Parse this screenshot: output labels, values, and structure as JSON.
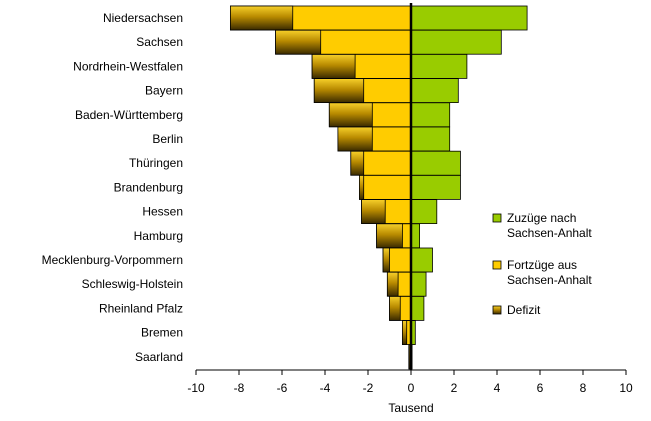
{
  "chart_data": {
    "type": "bar",
    "orientation": "horizontal",
    "categories": [
      "Niedersachsen",
      "Sachsen",
      "Nordrhein-Westfalen",
      "Bayern",
      "Baden-Württemberg",
      "Berlin",
      "Thüringen",
      "Brandenburg",
      "Hessen",
      "Hamburg",
      "Mecklenburg-Vorpommern",
      "Schleswig-Holstein",
      "Rheinland Pfalz",
      "Bremen",
      "Saarland"
    ],
    "series": [
      {
        "name": "Zuzüge nach Sachsen-Anhalt",
        "values": [
          5.4,
          4.2,
          2.6,
          2.2,
          1.8,
          1.8,
          2.3,
          2.3,
          1.2,
          0.4,
          1.0,
          0.7,
          0.6,
          0.2,
          0.05
        ],
        "color": "#99cc00"
      },
      {
        "name": "Fortzüge aus Sachsen-Anhalt",
        "values": [
          -8.4,
          -6.3,
          -4.6,
          -4.5,
          -3.8,
          -3.4,
          -2.8,
          -2.4,
          -2.3,
          -1.6,
          -1.3,
          -1.1,
          -1.0,
          -0.4,
          -0.1
        ],
        "color": "#ffcc00"
      },
      {
        "name": "Defizit",
        "values": [
          -2.9,
          -2.1,
          -2.0,
          -2.3,
          -2.0,
          -1.6,
          -0.6,
          -0.2,
          -1.1,
          -1.2,
          -0.3,
          -0.5,
          -0.5,
          -0.2,
          -0.05
        ],
        "color": "#cc9900"
      }
    ],
    "xlabel": "Tausend",
    "ylabel": "",
    "xlim": [
      -10,
      10
    ],
    "xticks": [
      "-10",
      "-8",
      "-6",
      "-4",
      "-2",
      "0",
      "2",
      "4",
      "6",
      "8",
      "10"
    ],
    "grid": false,
    "legend_position": "right",
    "legend": [
      {
        "line1": "Zuzüge nach",
        "line2": "Sachsen-Anhalt",
        "color": "#99cc00"
      },
      {
        "line1": "Fortzüge aus",
        "line2": "Sachsen-Anhalt",
        "color": "#ffcc00"
      },
      {
        "line1": "Defizit",
        "line2": "",
        "color": "#cc9900"
      }
    ]
  }
}
